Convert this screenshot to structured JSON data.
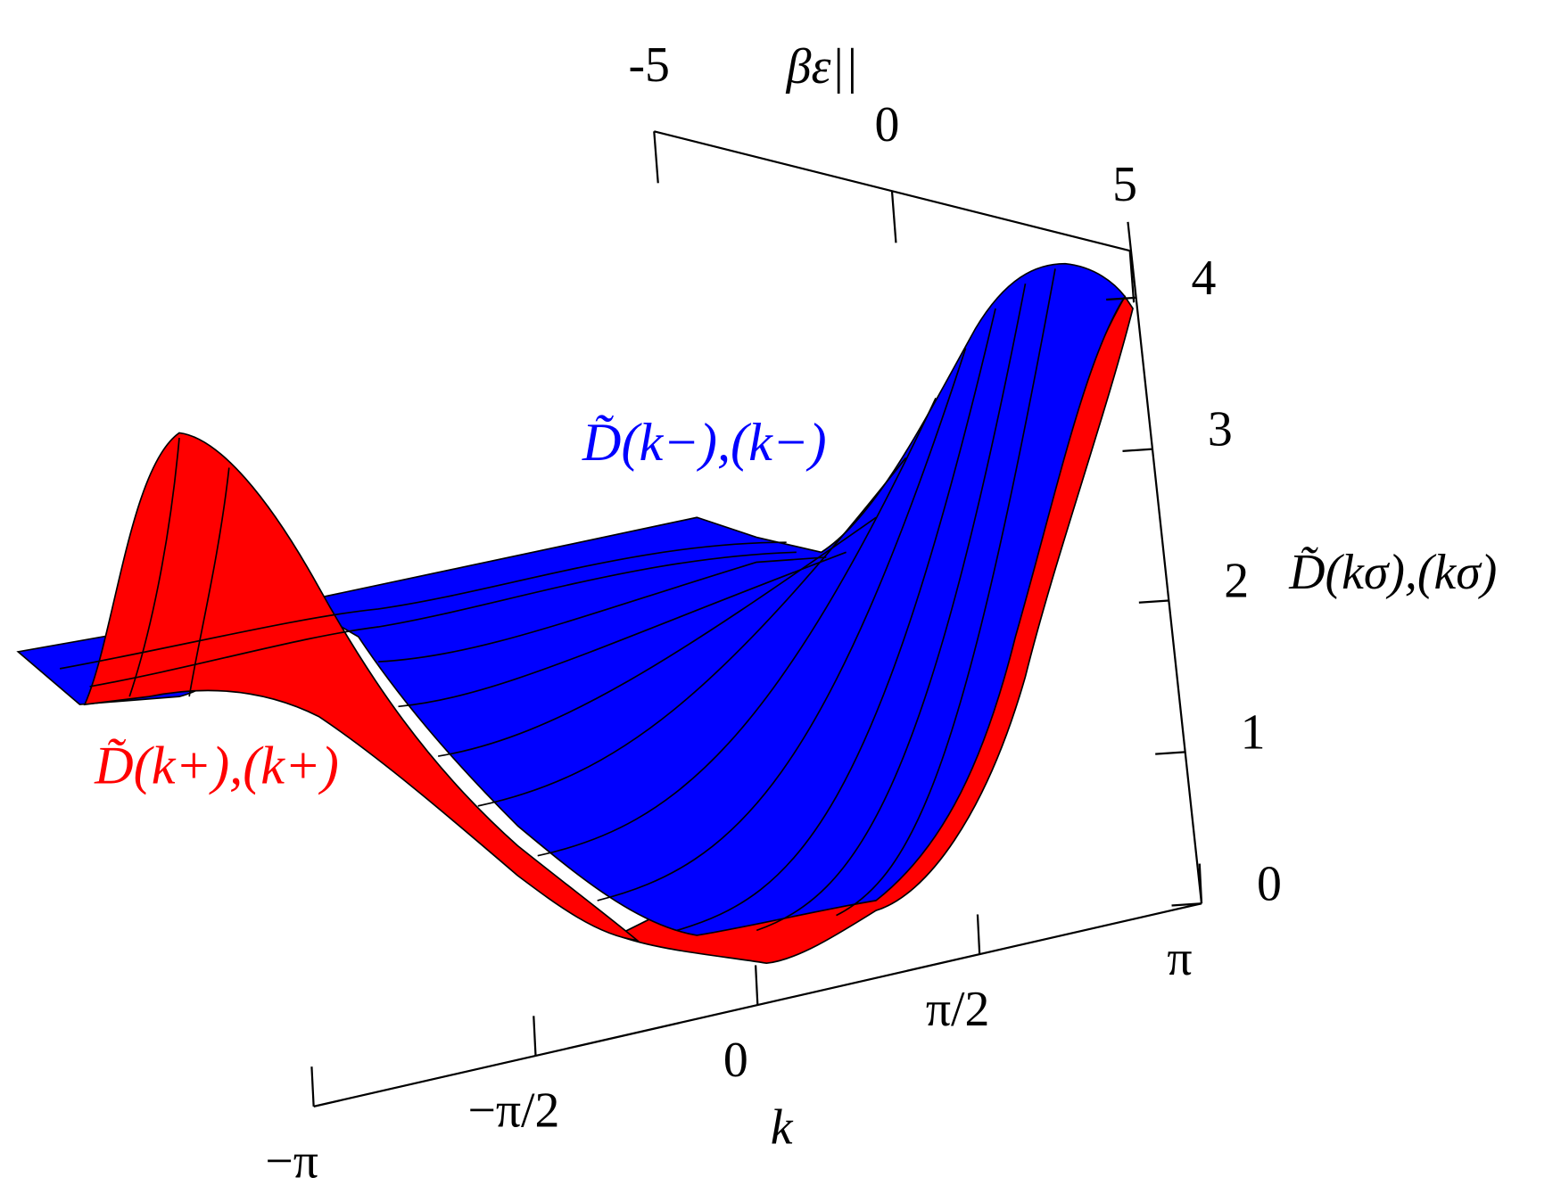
{
  "chart_data": {
    "type": "surface3d",
    "x_label": "k",
    "y_label": "βε||",
    "z_label": "D̃(kσ),(kσ)",
    "annotations": [
      {
        "text": "D̃(k−),(k−)",
        "color": "#0000ff"
      },
      {
        "text": "D̃(k+),(k+)",
        "color": "#ff0000"
      }
    ],
    "series": [
      {
        "name": "D̃(k+),(k+)",
        "color": "#ff0000"
      },
      {
        "name": "D̃(k−),(k−)",
        "color": "#0000ff"
      }
    ],
    "xlim": [
      -3.14159,
      3.14159
    ],
    "xticks": [
      {
        "value": -3.14159,
        "label": "−π"
      },
      {
        "value": -1.5708,
        "label": "−π/2"
      },
      0,
      {
        "value": 1.5708,
        "label": "π/2"
      },
      {
        "value": 3.14159,
        "label": "π"
      }
    ],
    "ylim": [
      -5,
      5
    ],
    "yticks": [
      -5,
      0,
      5
    ],
    "zlim": [
      0,
      4.5
    ],
    "zticks": [
      0,
      1,
      2,
      3,
      4
    ]
  }
}
